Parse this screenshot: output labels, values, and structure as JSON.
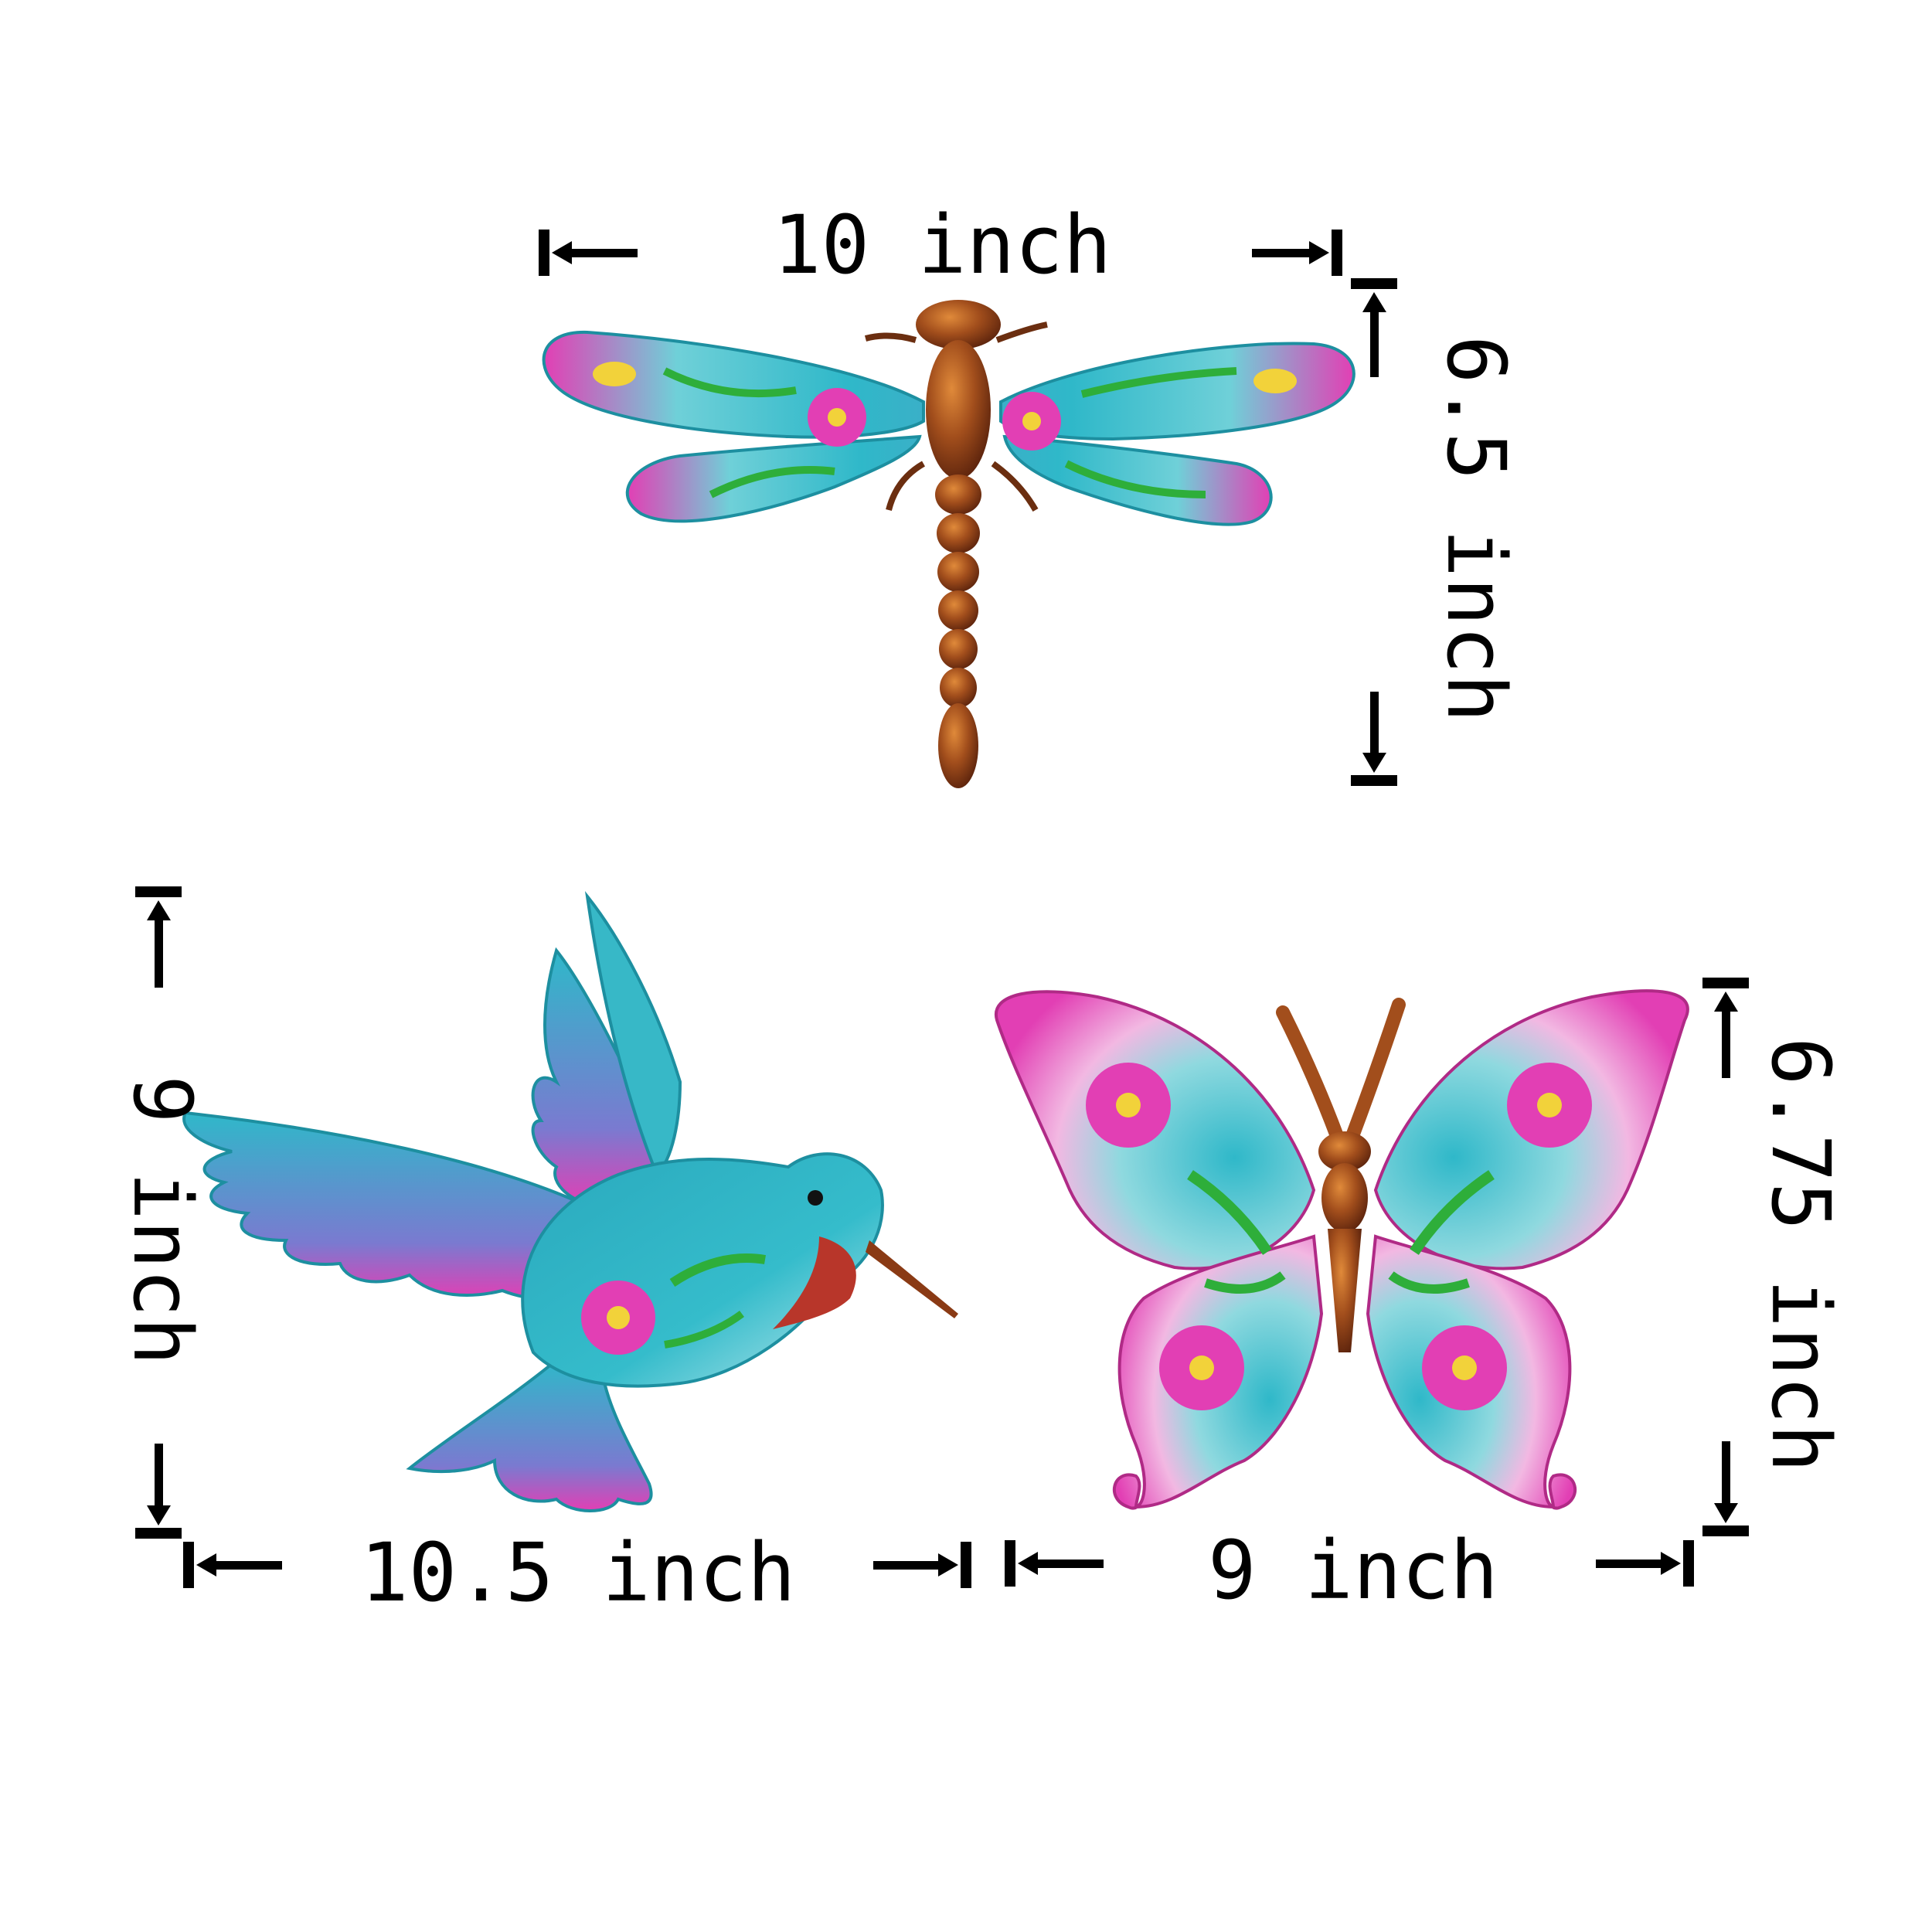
{
  "colors": {
    "turquoise": "#2fb8c9",
    "pink": "#e23fb4",
    "green": "#2eae3a",
    "copper": "#9a4a1a",
    "dimension_ink": "#000000"
  },
  "items": {
    "dragonfly": {
      "name": "dragonfly",
      "width_label": "10 inch",
      "height_label": "6.5 inch"
    },
    "hummingbird": {
      "name": "hummingbird",
      "width_label": "10.5 inch",
      "height_label": "9 inch"
    },
    "butterfly": {
      "name": "butterfly",
      "width_label": "9 inch",
      "height_label": "6.75 inch"
    }
  }
}
